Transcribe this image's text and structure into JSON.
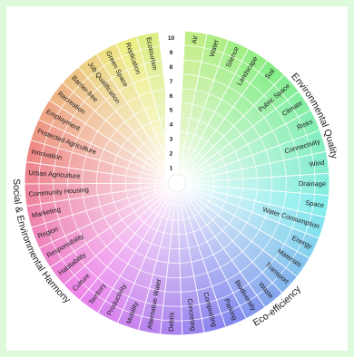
{
  "diagram": {
    "type": "radial category wheel",
    "scale": [
      "1",
      "2",
      "3",
      "4",
      "5",
      "6",
      "7",
      "8",
      "9",
      "10"
    ],
    "groups": [
      {
        "label": "Environmental Quality",
        "color": "#e8f4ff"
      },
      {
        "label": "Eco-efficiency",
        "color": "#fff6d8"
      },
      {
        "label": "Social & Environmental Harmony",
        "color": "#f2e8ff"
      }
    ],
    "categories": [
      "Air",
      "Water",
      "Silence",
      "Landscape",
      "Soil",
      "Public Space",
      "Climate",
      "Risks",
      "Connectivity",
      "Wind",
      "Drainage",
      "Space",
      "Water Consumption",
      "Energy",
      "Materials",
      "Transport",
      "Waste",
      "Biodiversity",
      "Parking",
      "Composting",
      "Concreting",
      "Debris",
      "Alternative Water",
      "Mobility",
      "Productivity",
      "Territory",
      "Culture",
      "Habitability",
      "Responsibility",
      "Region",
      "Marketing",
      "Community Housing",
      "Urban Agriculture",
      "Innovation",
      "Protected Agriculture",
      "Employment",
      "Recreation",
      "Barrier-free",
      "Job Qualification",
      "Green Space",
      "Replication",
      "Ecotourism"
    ]
  }
}
